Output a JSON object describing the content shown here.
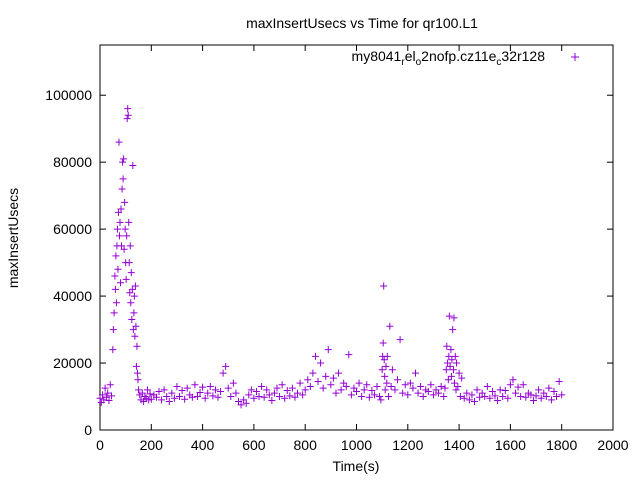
{
  "chart_data": {
    "type": "scatter",
    "title": "maxInsertUsecs vs Time for qr100.L1",
    "xlabel": "Time(s)",
    "ylabel": "maxInsertUsecs",
    "xlim": [
      0,
      2000
    ],
    "ylim": [
      0,
      115000
    ],
    "xticks": [
      0,
      200,
      400,
      600,
      800,
      1000,
      1200,
      1400,
      1600,
      1800,
      2000
    ],
    "yticks": [
      0,
      20000,
      40000,
      60000,
      80000,
      100000
    ],
    "xtick_labels": [
      "0",
      "200",
      "400",
      "600",
      "800",
      "1000",
      "1200",
      "1400",
      "1600",
      "1800",
      "2000"
    ],
    "ytick_labels": [
      "0",
      "20000",
      "40000",
      "60000",
      "80000",
      "100000"
    ],
    "grid": false,
    "legend_position": "top-right",
    "marker": "plus",
    "series": [
      {
        "name_parts": {
          "a": "my8041",
          "a_sub": "r",
          "b": "el",
          "b_sub": "o",
          "c": "2nofp.cz11e",
          "c_sub": "c",
          "d": "32r128"
        },
        "color": "#9400d3",
        "points": [
          [
            0,
            9500
          ],
          [
            5,
            8200
          ],
          [
            10,
            10500
          ],
          [
            15,
            9000
          ],
          [
            20,
            12500
          ],
          [
            25,
            9800
          ],
          [
            30,
            11000
          ],
          [
            35,
            8800
          ],
          [
            40,
            13500
          ],
          [
            45,
            10200
          ],
          [
            50,
            24000
          ],
          [
            52,
            30000
          ],
          [
            55,
            35000
          ],
          [
            58,
            46000
          ],
          [
            60,
            42000
          ],
          [
            62,
            52000
          ],
          [
            64,
            38000
          ],
          [
            66,
            55000
          ],
          [
            68,
            60000
          ],
          [
            70,
            48000
          ],
          [
            72,
            65000
          ],
          [
            74,
            86000
          ],
          [
            76,
            58000
          ],
          [
            78,
            62000
          ],
          [
            80,
            44000
          ],
          [
            82,
            66000
          ],
          [
            84,
            55000
          ],
          [
            86,
            72000
          ],
          [
            88,
            80000
          ],
          [
            90,
            75000
          ],
          [
            92,
            81000
          ],
          [
            94,
            54000
          ],
          [
            96,
            68000
          ],
          [
            98,
            60000
          ],
          [
            100,
            50000
          ],
          [
            102,
            45000
          ],
          [
            104,
            58000
          ],
          [
            106,
            93000
          ],
          [
            108,
            96000
          ],
          [
            110,
            94000
          ],
          [
            112,
            62000
          ],
          [
            114,
            50000
          ],
          [
            116,
            41000
          ],
          [
            118,
            55000
          ],
          [
            120,
            38000
          ],
          [
            122,
            47000
          ],
          [
            124,
            33000
          ],
          [
            126,
            42000
          ],
          [
            128,
            79000
          ],
          [
            130,
            30000
          ],
          [
            132,
            35000
          ],
          [
            134,
            40000
          ],
          [
            136,
            28000
          ],
          [
            138,
            43000
          ],
          [
            140,
            31000
          ],
          [
            142,
            19000
          ],
          [
            144,
            25000
          ],
          [
            146,
            17000
          ],
          [
            148,
            15000
          ],
          [
            150,
            12000
          ],
          [
            155,
            10500
          ],
          [
            160,
            9000
          ],
          [
            165,
            11000
          ],
          [
            170,
            8500
          ],
          [
            175,
            10000
          ],
          [
            180,
            9500
          ],
          [
            185,
            12000
          ],
          [
            190,
            9000
          ],
          [
            195,
            10800
          ],
          [
            200,
            9200
          ],
          [
            210,
            10500
          ],
          [
            220,
            9800
          ],
          [
            230,
            11500
          ],
          [
            240,
            9000
          ],
          [
            250,
            12000
          ],
          [
            260,
            10000
          ],
          [
            270,
            8500
          ],
          [
            280,
            11000
          ],
          [
            290,
            9500
          ],
          [
            300,
            13000
          ],
          [
            310,
            10000
          ],
          [
            320,
            11800
          ],
          [
            330,
            9200
          ],
          [
            340,
            12500
          ],
          [
            350,
            10500
          ],
          [
            360,
            9800
          ],
          [
            370,
            13500
          ],
          [
            380,
            10000
          ],
          [
            390,
            11200
          ],
          [
            400,
            12800
          ],
          [
            410,
            9500
          ],
          [
            420,
            11000
          ],
          [
            430,
            13000
          ],
          [
            440,
            10200
          ],
          [
            450,
            12000
          ],
          [
            460,
            9800
          ],
          [
            470,
            11500
          ],
          [
            480,
            17000
          ],
          [
            490,
            19000
          ],
          [
            500,
            12500
          ],
          [
            510,
            10000
          ],
          [
            520,
            14000
          ],
          [
            530,
            11000
          ],
          [
            540,
            8500
          ],
          [
            550,
            7500
          ],
          [
            560,
            9000
          ],
          [
            570,
            8000
          ],
          [
            580,
            10500
          ],
          [
            590,
            12000
          ],
          [
            600,
            9500
          ],
          [
            610,
            11500
          ],
          [
            620,
            10000
          ],
          [
            630,
            13000
          ],
          [
            640,
            9800
          ],
          [
            650,
            12000
          ],
          [
            660,
            10500
          ],
          [
            670,
            8800
          ],
          [
            680,
            11000
          ],
          [
            690,
            12500
          ],
          [
            700,
            10000
          ],
          [
            710,
            13500
          ],
          [
            720,
            9500
          ],
          [
            730,
            11800
          ],
          [
            740,
            10200
          ],
          [
            750,
            12500
          ],
          [
            760,
            9800
          ],
          [
            770,
            11000
          ],
          [
            780,
            14000
          ],
          [
            790,
            10500
          ],
          [
            800,
            12000
          ],
          [
            810,
            15000
          ],
          [
            820,
            13000
          ],
          [
            830,
            17000
          ],
          [
            840,
            22000
          ],
          [
            850,
            14500
          ],
          [
            860,
            20000
          ],
          [
            870,
            12500
          ],
          [
            880,
            16000
          ],
          [
            890,
            24000
          ],
          [
            900,
            13500
          ],
          [
            910,
            15500
          ],
          [
            920,
            11000
          ],
          [
            930,
            17000
          ],
          [
            940,
            12000
          ],
          [
            950,
            14000
          ],
          [
            960,
            13000
          ],
          [
            970,
            22500
          ],
          [
            980,
            10500
          ],
          [
            990,
            12500
          ],
          [
            1000,
            11500
          ],
          [
            1010,
            14000
          ],
          [
            1020,
            10000
          ],
          [
            1030,
            12000
          ],
          [
            1040,
            13500
          ],
          [
            1050,
            9800
          ],
          [
            1060,
            11800
          ],
          [
            1070,
            10500
          ],
          [
            1080,
            13000
          ],
          [
            1090,
            10000
          ],
          [
            1095,
            9000
          ],
          [
            1100,
            18000
          ],
          [
            1102,
            22000
          ],
          [
            1104,
            26000
          ],
          [
            1106,
            43000
          ],
          [
            1108,
            21000
          ],
          [
            1110,
            16000
          ],
          [
            1112,
            12000
          ],
          [
            1115,
            19000
          ],
          [
            1118,
            14000
          ],
          [
            1120,
            22000
          ],
          [
            1125,
            10000
          ],
          [
            1130,
            31000
          ],
          [
            1135,
            13000
          ],
          [
            1140,
            18000
          ],
          [
            1150,
            12000
          ],
          [
            1160,
            15000
          ],
          [
            1170,
            27000
          ],
          [
            1180,
            11000
          ],
          [
            1190,
            13500
          ],
          [
            1200,
            10500
          ],
          [
            1210,
            14000
          ],
          [
            1220,
            12500
          ],
          [
            1230,
            17000
          ],
          [
            1240,
            11000
          ],
          [
            1250,
            13000
          ],
          [
            1260,
            10000
          ],
          [
            1270,
            12000
          ],
          [
            1280,
            11500
          ],
          [
            1290,
            13500
          ],
          [
            1300,
            10500
          ],
          [
            1310,
            12000
          ],
          [
            1320,
            11000
          ],
          [
            1330,
            13000
          ],
          [
            1340,
            10000
          ],
          [
            1345,
            12500
          ],
          [
            1350,
            18000
          ],
          [
            1352,
            25000
          ],
          [
            1355,
            20000
          ],
          [
            1358,
            15000
          ],
          [
            1360,
            22000
          ],
          [
            1362,
            34000
          ],
          [
            1365,
            19000
          ],
          [
            1368,
            24000
          ],
          [
            1370,
            16000
          ],
          [
            1372,
            21000
          ],
          [
            1375,
            30000
          ],
          [
            1378,
            18000
          ],
          [
            1380,
            33500
          ],
          [
            1382,
            14000
          ],
          [
            1385,
            22000
          ],
          [
            1388,
            12000
          ],
          [
            1390,
            20000
          ],
          [
            1395,
            13000
          ],
          [
            1400,
            17000
          ],
          [
            1405,
            10000
          ],
          [
            1410,
            15500
          ],
          [
            1420,
            9500
          ],
          [
            1430,
            11000
          ],
          [
            1440,
            9000
          ],
          [
            1450,
            10500
          ],
          [
            1460,
            8500
          ],
          [
            1470,
            12000
          ],
          [
            1480,
            9800
          ],
          [
            1490,
            11000
          ],
          [
            1500,
            10000
          ],
          [
            1510,
            13000
          ],
          [
            1520,
            9500
          ],
          [
            1530,
            11500
          ],
          [
            1540,
            10200
          ],
          [
            1550,
            8800
          ],
          [
            1560,
            12000
          ],
          [
            1570,
            10000
          ],
          [
            1580,
            11800
          ],
          [
            1590,
            9500
          ],
          [
            1600,
            13500
          ],
          [
            1610,
            15000
          ],
          [
            1620,
            11000
          ],
          [
            1630,
            12800
          ],
          [
            1640,
            10000
          ],
          [
            1650,
            13500
          ],
          [
            1660,
            9800
          ],
          [
            1670,
            11000
          ],
          [
            1680,
            10500
          ],
          [
            1690,
            8800
          ],
          [
            1700,
            10200
          ],
          [
            1710,
            12000
          ],
          [
            1720,
            9500
          ],
          [
            1730,
            11000
          ],
          [
            1740,
            10000
          ],
          [
            1750,
            12500
          ],
          [
            1760,
            9000
          ],
          [
            1770,
            11500
          ],
          [
            1780,
            10000
          ],
          [
            1790,
            14500
          ],
          [
            1800,
            10500
          ]
        ]
      }
    ]
  }
}
